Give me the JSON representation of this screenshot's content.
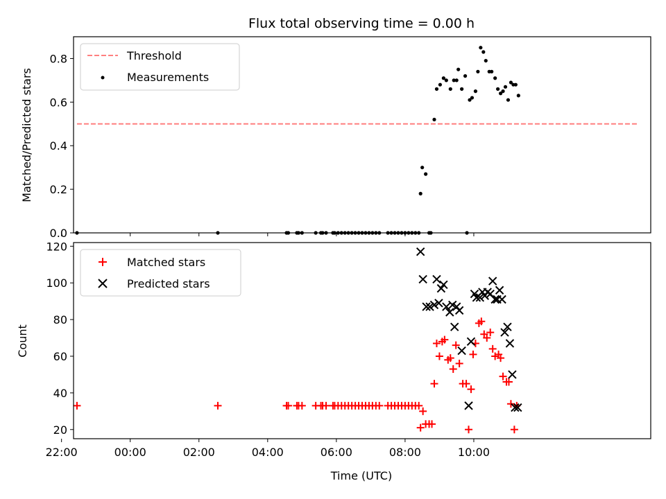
{
  "title": "Flux total observing time = 0.00 h",
  "colors": {
    "threshold": "#ff7f7f",
    "measurements": "#000000",
    "matched": "#ff0000",
    "predicted": "#000000"
  },
  "chart_data": [
    {
      "type": "scatter",
      "panel": "top",
      "title": "Flux total observing time = 0.00 h",
      "xlabel": "",
      "ylabel": "Matched/Predicted stars",
      "xlim": [
        -1.65,
        15.15
      ],
      "ylim": [
        0,
        0.9
      ],
      "xticks": [
        -2,
        0,
        2,
        4,
        6,
        8,
        10
      ],
      "yticks": [
        0.0,
        0.2,
        0.4,
        0.6,
        0.8
      ],
      "ytick_labels": [
        "0.0",
        "0.2",
        "0.4",
        "0.6",
        "0.8"
      ],
      "grid": false,
      "legend": {
        "position": "top-left",
        "entries": [
          "Threshold",
          "Measurements"
        ]
      },
      "threshold": {
        "name": "Threshold",
        "x": [
          -1.55,
          14.8
        ],
        "y": 0.5
      },
      "series": [
        {
          "name": "Measurements",
          "x": [
            -1.55,
            2.55,
            4.55,
            4.6,
            4.85,
            4.9,
            5.0,
            5.4,
            5.55,
            5.6,
            5.7,
            5.9,
            5.95,
            6.05,
            6.15,
            6.25,
            6.35,
            6.45,
            6.55,
            6.65,
            6.75,
            6.85,
            6.95,
            7.05,
            7.15,
            7.25,
            7.5,
            7.6,
            7.7,
            7.8,
            7.9,
            8.0,
            8.1,
            8.2,
            8.3,
            8.4,
            8.45,
            8.5,
            8.6,
            8.7,
            8.75,
            8.85,
            8.92,
            9.02,
            9.12,
            9.2,
            9.32,
            9.42,
            9.5,
            9.55,
            9.65,
            9.75,
            9.8,
            9.88,
            9.95,
            10.05,
            10.12,
            10.2,
            10.28,
            10.35,
            10.45,
            10.52,
            10.62,
            10.7,
            10.78,
            10.85,
            10.92,
            11.0,
            11.08,
            11.15,
            11.22,
            11.3
          ],
          "y": [
            0.0,
            0.0,
            0.0,
            0.0,
            0.0,
            0.0,
            0.0,
            0.0,
            0.0,
            0.0,
            0.0,
            0.0,
            0.0,
            0.0,
            0.0,
            0.0,
            0.0,
            0.0,
            0.0,
            0.0,
            0.0,
            0.0,
            0.0,
            0.0,
            0.0,
            0.0,
            0.0,
            0.0,
            0.0,
            0.0,
            0.0,
            0.0,
            0.0,
            0.0,
            0.0,
            0.0,
            0.18,
            0.3,
            0.27,
            0.0,
            0.0,
            0.52,
            0.66,
            0.68,
            0.71,
            0.7,
            0.66,
            0.7,
            0.7,
            0.75,
            0.66,
            0.72,
            0.0,
            0.61,
            0.62,
            0.65,
            0.74,
            0.85,
            0.83,
            0.79,
            0.74,
            0.74,
            0.71,
            0.66,
            0.64,
            0.65,
            0.67,
            0.61,
            0.69,
            0.68,
            0.68,
            0.63
          ]
        }
      ]
    },
    {
      "type": "scatter",
      "panel": "bottom",
      "xlabel": "Time (UTC)",
      "ylabel": "Count",
      "xlim": [
        -1.65,
        15.15
      ],
      "ylim": [
        15,
        122
      ],
      "xticks": [
        -2,
        0,
        2,
        4,
        6,
        8,
        10
      ],
      "xtick_labels": [
        "22:00",
        "00:00",
        "02:00",
        "04:00",
        "06:00",
        "08:00",
        "10:00"
      ],
      "yticks": [
        20,
        40,
        60,
        80,
        100,
        120
      ],
      "grid": false,
      "legend": {
        "position": "top-left",
        "entries": [
          "Matched stars",
          "Predicted stars"
        ]
      },
      "series": [
        {
          "name": "Matched stars",
          "marker": "+",
          "x": [
            -1.55,
            2.55,
            4.55,
            4.6,
            4.85,
            4.9,
            5.0,
            5.4,
            5.55,
            5.6,
            5.7,
            5.9,
            5.95,
            6.05,
            6.15,
            6.25,
            6.35,
            6.45,
            6.55,
            6.65,
            6.75,
            6.85,
            6.95,
            7.05,
            7.15,
            7.25,
            7.5,
            7.6,
            7.7,
            7.8,
            7.9,
            8.0,
            8.1,
            8.2,
            8.3,
            8.4,
            8.45,
            8.52,
            8.6,
            8.7,
            8.78,
            8.85,
            8.92,
            9.0,
            9.08,
            9.15,
            9.25,
            9.32,
            9.4,
            9.48,
            9.58,
            9.68,
            9.78,
            9.85,
            9.92,
            9.98,
            10.05,
            10.15,
            10.22,
            10.3,
            10.38,
            10.48,
            10.55,
            10.62,
            10.72,
            10.78,
            10.85,
            10.95,
            11.02,
            11.08,
            11.18,
            11.25
          ],
          "y": [
            33,
            33,
            33,
            33,
            33,
            33,
            33,
            33,
            33,
            33,
            33,
            33,
            33,
            33,
            33,
            33,
            33,
            33,
            33,
            33,
            33,
            33,
            33,
            33,
            33,
            33,
            33,
            33,
            33,
            33,
            33,
            33,
            33,
            33,
            33,
            33,
            21,
            30,
            23,
            23,
            23,
            45,
            67,
            60,
            68,
            69,
            58,
            59,
            53,
            66,
            56,
            45,
            45,
            20,
            42,
            61,
            67,
            78,
            79,
            72,
            70,
            73,
            64,
            60,
            61,
            59,
            49,
            46,
            46,
            34,
            20,
            33
          ]
        },
        {
          "name": "Predicted stars",
          "marker": "x",
          "x": [
            8.45,
            8.52,
            8.62,
            8.72,
            8.85,
            8.92,
            8.98,
            9.05,
            9.12,
            9.2,
            9.3,
            9.38,
            9.44,
            9.5,
            9.58,
            9.65,
            9.85,
            9.92,
            10.02,
            10.08,
            10.18,
            10.25,
            10.32,
            10.4,
            10.48,
            10.55,
            10.62,
            10.68,
            10.75,
            10.82,
            10.9,
            10.98,
            11.05,
            11.12,
            11.2,
            11.28
          ],
          "y": [
            117,
            102,
            87,
            87,
            88,
            102,
            89,
            97,
            99,
            87,
            84,
            88,
            76,
            87,
            85,
            63,
            33,
            68,
            94,
            92,
            92,
            95,
            93,
            95,
            94,
            101,
            91,
            91,
            96,
            91,
            73,
            76,
            67,
            50,
            32,
            32
          ]
        }
      ]
    }
  ]
}
